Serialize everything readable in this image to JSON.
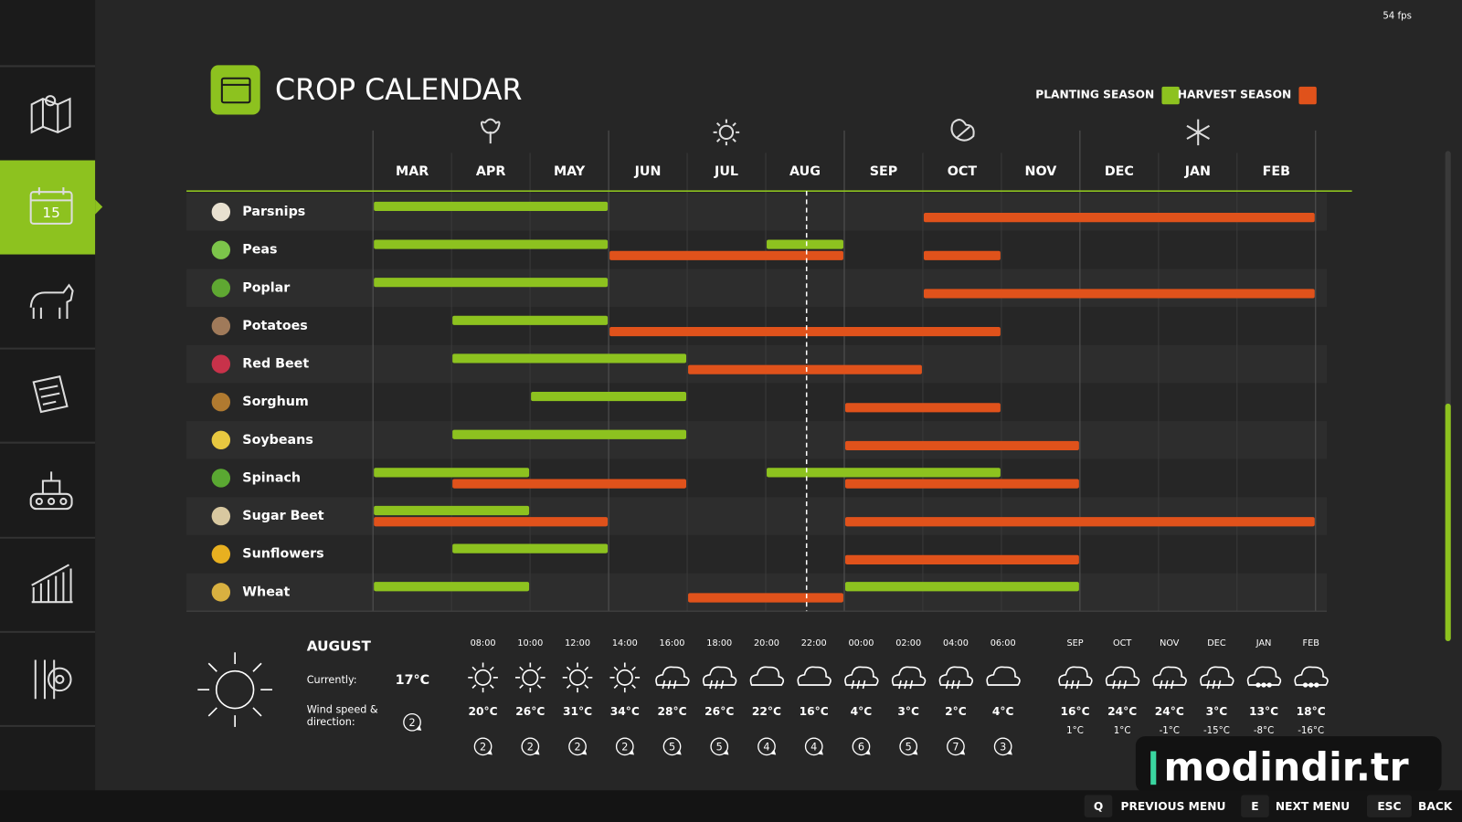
{
  "fps": "54 fps",
  "header": {
    "title": "CROP CALENDAR",
    "legend": [
      {
        "label": "PLANTING SEASON",
        "color": "#8dc21f"
      },
      {
        "label": "HARVEST SEASON",
        "color": "#e0521b"
      }
    ]
  },
  "calendar": {
    "months": [
      "MAR",
      "APR",
      "MAY",
      "JUN",
      "JUL",
      "AUG",
      "SEP",
      "OCT",
      "NOV",
      "DEC",
      "JAN",
      "FEB"
    ],
    "today_position": 5.52,
    "crops": [
      {
        "name": "Parsnips",
        "planting": [
          [
            0,
            2
          ]
        ],
        "harvest": [
          [
            7,
            11
          ]
        ]
      },
      {
        "name": "Peas",
        "planting": [
          [
            0,
            2
          ],
          [
            5,
            5
          ]
        ],
        "harvest": [
          [
            3,
            5
          ],
          [
            7,
            7
          ]
        ]
      },
      {
        "name": "Poplar",
        "planting": [
          [
            0,
            2
          ]
        ],
        "harvest": [
          [
            7,
            11
          ]
        ]
      },
      {
        "name": "Potatoes",
        "planting": [
          [
            1,
            2
          ]
        ],
        "harvest": [
          [
            3,
            7
          ]
        ]
      },
      {
        "name": "Red Beet",
        "planting": [
          [
            1,
            3
          ]
        ],
        "harvest": [
          [
            4,
            6
          ]
        ]
      },
      {
        "name": "Sorghum",
        "planting": [
          [
            2,
            3
          ]
        ],
        "harvest": [
          [
            6,
            7
          ]
        ]
      },
      {
        "name": "Soybeans",
        "planting": [
          [
            1,
            3
          ]
        ],
        "harvest": [
          [
            6,
            8
          ]
        ]
      },
      {
        "name": "Spinach",
        "planting": [
          [
            0,
            1
          ],
          [
            5,
            7
          ]
        ],
        "harvest": [
          [
            1,
            3
          ],
          [
            6,
            8
          ]
        ]
      },
      {
        "name": "Sugar Beet",
        "planting": [
          [
            0,
            1
          ]
        ],
        "harvest": [
          [
            0,
            2
          ],
          [
            6,
            11
          ]
        ]
      },
      {
        "name": "Sunflowers",
        "planting": [
          [
            1,
            2
          ]
        ],
        "harvest": [
          [
            6,
            8
          ]
        ]
      },
      {
        "name": "Wheat",
        "planting": [
          [
            0,
            1
          ],
          [
            6,
            8
          ]
        ],
        "harvest": [
          [
            4,
            5
          ]
        ]
      }
    ]
  },
  "weather": {
    "month": "AUGUST",
    "current_label": "Currently:",
    "current_temp": "17°C",
    "wind_label": [
      "Wind speed &",
      "direction:"
    ],
    "wind": 2,
    "hourly": [
      {
        "time": "08:00",
        "icon": "sun",
        "temp": "20°C",
        "wind": 2
      },
      {
        "time": "10:00",
        "icon": "sun",
        "temp": "26°C",
        "wind": 2
      },
      {
        "time": "12:00",
        "icon": "sun",
        "temp": "31°C",
        "wind": 2
      },
      {
        "time": "14:00",
        "icon": "sun",
        "temp": "34°C",
        "wind": 2
      },
      {
        "time": "16:00",
        "icon": "rain",
        "temp": "28°C",
        "wind": 5
      },
      {
        "time": "18:00",
        "icon": "rain",
        "temp": "26°C",
        "wind": 5
      },
      {
        "time": "20:00",
        "icon": "cloud",
        "temp": "22°C",
        "wind": 4
      },
      {
        "time": "22:00",
        "icon": "cloud",
        "temp": "16°C",
        "wind": 4
      },
      {
        "time": "00:00",
        "icon": "rain",
        "temp": "4°C",
        "wind": 6
      },
      {
        "time": "02:00",
        "icon": "rain",
        "temp": "3°C",
        "wind": 5
      },
      {
        "time": "04:00",
        "icon": "rain",
        "temp": "2°C",
        "wind": 7
      },
      {
        "time": "06:00",
        "icon": "cloud",
        "temp": "4°C",
        "wind": 3
      }
    ],
    "monthly": [
      {
        "month": "SEP",
        "icon": "rain",
        "high": "16°C",
        "low": "1°C"
      },
      {
        "month": "OCT",
        "icon": "rain",
        "high": "24°C",
        "low": "1°C"
      },
      {
        "month": "NOV",
        "icon": "rain",
        "high": "24°C",
        "low": "-1°C"
      },
      {
        "month": "DEC",
        "icon": "rain",
        "high": "3°C",
        "low": "-15°C"
      },
      {
        "month": "JAN",
        "icon": "snow",
        "high": "13°C",
        "low": "-8°C"
      },
      {
        "month": "FEB",
        "icon": "snow",
        "high": "18°C",
        "low": "-16°C"
      }
    ]
  },
  "footer": {
    "buttons": [
      {
        "key": "Q",
        "label": "PREVIOUS MENU"
      },
      {
        "key": "E",
        "label": "NEXT MENU"
      },
      {
        "key": "ESC",
        "label": "BACK"
      }
    ]
  },
  "watermark": "modindir.tr"
}
